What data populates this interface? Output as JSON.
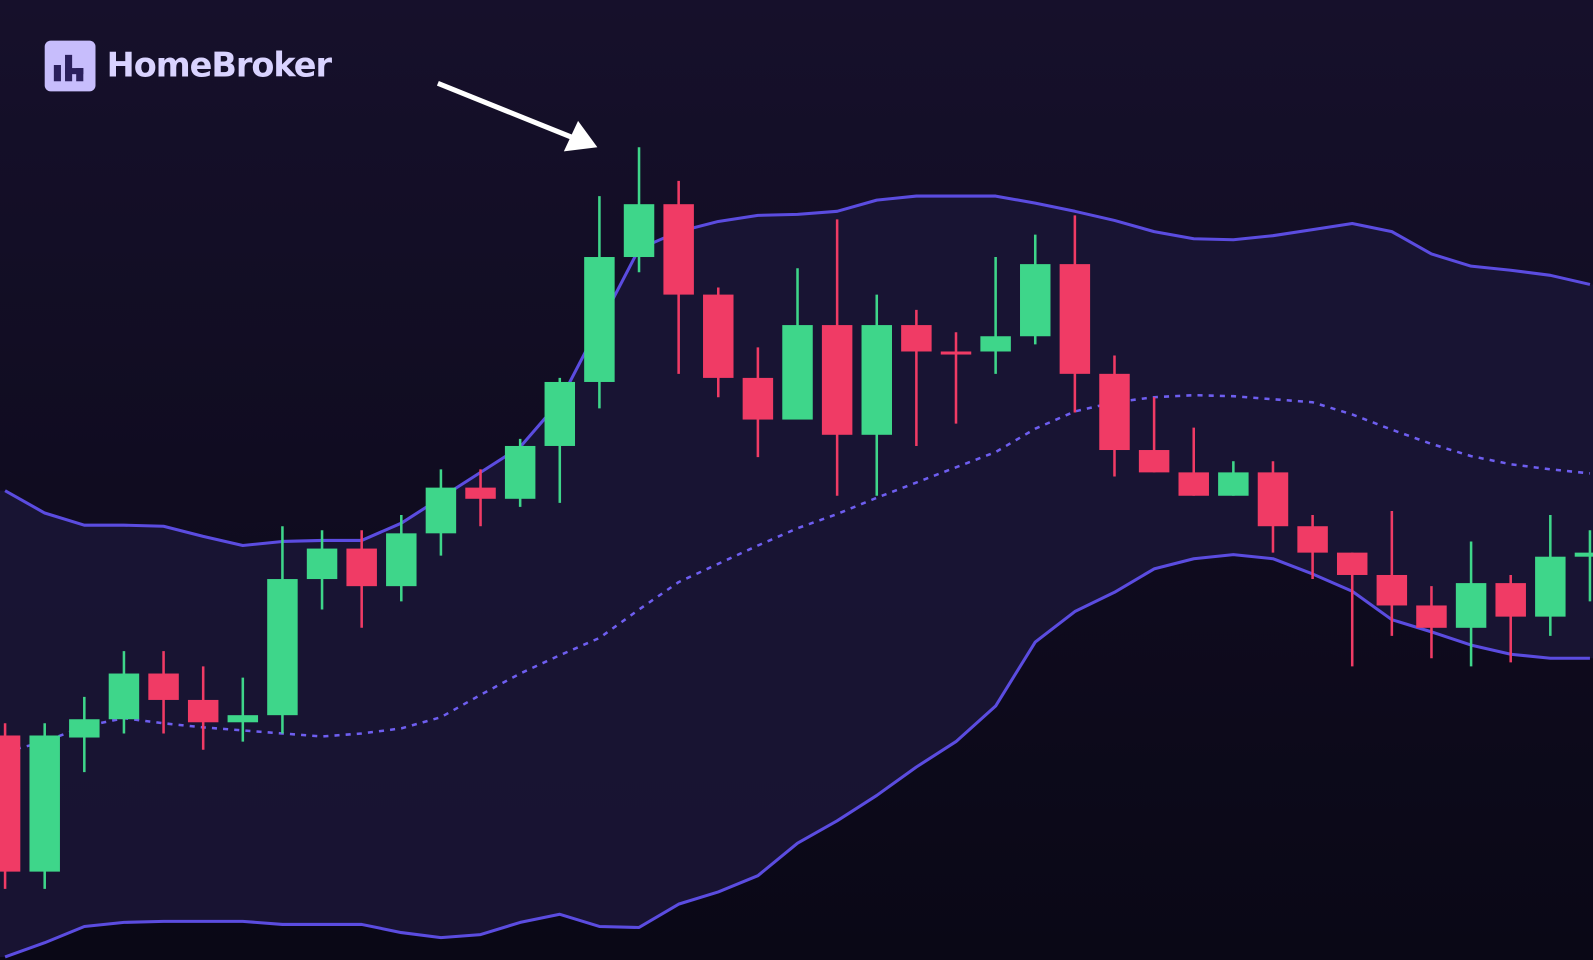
{
  "brand": "HomeBroker",
  "chart_data": {
    "type": "candlestick",
    "up_color": "#3ed68a",
    "down_color": "#f03b65",
    "ylim": [
      0,
      945
    ],
    "open": [
      221,
      87,
      219,
      237,
      282,
      256,
      234,
      241,
      375,
      405,
      368,
      420,
      465,
      454,
      506,
      569,
      692,
      744,
      655,
      573,
      532,
      625,
      517,
      625,
      599,
      599,
      614,
      685,
      577,
      502,
      480,
      457,
      480,
      427,
      401,
      379,
      349,
      327,
      371,
      338,
      397
    ],
    "high": [
      233,
      233,
      259,
      304,
      304,
      289,
      278,
      427,
      423,
      423,
      438,
      483,
      483,
      513,
      573,
      752,
      800,
      767,
      662,
      603,
      681,
      729,
      655,
      640,
      618,
      692,
      714,
      733,
      595,
      554,
      524,
      491,
      491,
      438,
      401,
      442,
      368,
      412,
      379,
      438,
      423
    ],
    "low": [
      70,
      70,
      185,
      223,
      223,
      207,
      215,
      223,
      345,
      327,
      353,
      398,
      427,
      446,
      450,
      543,
      677,
      577,
      554,
      495,
      532,
      457,
      457,
      506,
      528,
      577,
      606,
      539,
      476,
      480,
      457,
      457,
      401,
      375,
      289,
      319,
      297,
      289,
      293,
      319,
      353
    ],
    "close": [
      87,
      221,
      237,
      282,
      256,
      234,
      241,
      375,
      405,
      368,
      420,
      465,
      454,
      506,
      569,
      692,
      744,
      655,
      573,
      532,
      625,
      517,
      625,
      599,
      596,
      614,
      685,
      577,
      502,
      480,
      457,
      480,
      427,
      401,
      379,
      349,
      327,
      371,
      338,
      397,
      401
    ],
    "bands": [
      {
        "color": "#5b4ce0",
        "dashed": false,
        "values": [
          462,
          440,
          428,
          428,
          427,
          417,
          408,
          412,
          413,
          413,
          430,
          455,
          480,
          505,
          550,
          625,
          700,
          717,
          727,
          733,
          734,
          737,
          748,
          752,
          752,
          752,
          745,
          737,
          728,
          717,
          710,
          709,
          713,
          719,
          725,
          717,
          695,
          683,
          679,
          674,
          665
        ]
      },
      {
        "color": "#6e5ef0",
        "dashed": true,
        "values": [
          205,
          215,
          230,
          238,
          233,
          229,
          226,
          223,
          220,
          223,
          228,
          239,
          261,
          282,
          300,
          317,
          345,
          372,
          390,
          408,
          425,
          439,
          455,
          470,
          485,
          500,
          523,
          540,
          549,
          554,
          556,
          555,
          552,
          549,
          537,
          522,
          508,
          496,
          488,
          483,
          479
        ]
      },
      {
        "color": "#5b4ce0",
        "dashed": false,
        "values": [
          3,
          17,
          33,
          37,
          38,
          38,
          38,
          35,
          35,
          35,
          27,
          22,
          25,
          37,
          45,
          33,
          32,
          55,
          67,
          83,
          115,
          137,
          162,
          190,
          215,
          250,
          313,
          343,
          362,
          385,
          395,
          399,
          395,
          380,
          363,
          335,
          323,
          310,
          301,
          297,
          297
        ]
      }
    ]
  }
}
